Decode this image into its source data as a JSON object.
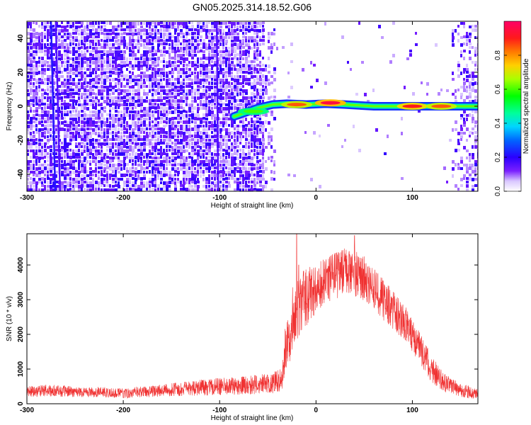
{
  "title": "GN05.2025.314.18.52.G06",
  "chart_data": [
    {
      "type": "heatmap",
      "xlabel": "Height of straight line (km)",
      "ylabel": "Frequency (Hz)",
      "xlim": [
        -300,
        168
      ],
      "ylim": [
        -50,
        50
      ],
      "xticks": [
        -300,
        -200,
        -100,
        0,
        100
      ],
      "yticks": [
        -40,
        -20,
        0,
        20,
        40
      ],
      "colorbar": {
        "label": "Normalized spectral amplitude",
        "range": [
          0.0,
          1.0
        ],
        "ticks": [
          0.0,
          0.2,
          0.4,
          0.6,
          0.8
        ]
      },
      "dense_noise_region_x": [
        -300,
        -55
      ],
      "sparse_region_x": [
        -55,
        140
      ],
      "edge_noise_region_x": [
        140,
        168
      ],
      "signal_trace": [
        {
          "x": -85,
          "f": -6
        },
        {
          "x": -70,
          "f": -3
        },
        {
          "x": -60,
          "f": -1
        },
        {
          "x": -45,
          "f": 1
        },
        {
          "x": -30,
          "f": 1.5
        },
        {
          "x": -10,
          "f": 1
        },
        {
          "x": 10,
          "f": 1.5
        },
        {
          "x": 30,
          "f": 1
        },
        {
          "x": 60,
          "f": 0
        },
        {
          "x": 90,
          "f": 0
        },
        {
          "x": 120,
          "f": 0
        },
        {
          "x": 150,
          "f": 0
        },
        {
          "x": 168,
          "f": 0
        }
      ],
      "signal_peaks": [
        {
          "x": -65,
          "f": -3,
          "a": 0.6
        },
        {
          "x": -20,
          "f": 1,
          "a": 0.85
        },
        {
          "x": 15,
          "f": 2,
          "a": 0.95
        },
        {
          "x": 100,
          "f": 0,
          "a": 0.9
        },
        {
          "x": 130,
          "f": 0,
          "a": 0.85
        }
      ],
      "vertical_streaks_x": [
        -275,
        -270,
        -103
      ]
    },
    {
      "type": "line",
      "xlabel": "Height of straight line (km)",
      "ylabel": "SNR (10 * v/v)",
      "xlim": [
        -300,
        168
      ],
      "ylim": [
        0,
        4900
      ],
      "xticks": [
        -300,
        -200,
        -100,
        0,
        100
      ],
      "yticks": [
        0,
        1000,
        2000,
        3000,
        4000
      ],
      "series": [
        {
          "color": "#f03232",
          "x": [
            -300,
            -280,
            -260,
            -240,
            -220,
            -200,
            -180,
            -160,
            -140,
            -120,
            -100,
            -80,
            -60,
            -45,
            -40,
            -35,
            -32,
            -28,
            -25,
            -20,
            -15,
            -10,
            0,
            10,
            20,
            30,
            35,
            40,
            50,
            60,
            70,
            80,
            90,
            100,
            110,
            120,
            130,
            140,
            150,
            160,
            168
          ],
          "values": [
            350,
            380,
            360,
            340,
            330,
            300,
            340,
            380,
            420,
            460,
            500,
            520,
            560,
            600,
            650,
            700,
            1500,
            2000,
            2400,
            2800,
            3000,
            3100,
            3300,
            3500,
            3700,
            3800,
            3850,
            3800,
            3600,
            3300,
            3000,
            2700,
            2400,
            2000,
            1500,
            1000,
            700,
            500,
            400,
            320,
            280
          ],
          "noise_amplitude": [
            150,
            180,
            160,
            150,
            150,
            140,
            160,
            180,
            200,
            230,
            250,
            260,
            280,
            300,
            320,
            350,
            700,
            900,
            1000,
            1000,
            900,
            850,
            750,
            700,
            700,
            700,
            700,
            700,
            650,
            600,
            600,
            550,
            550,
            500,
            450,
            400,
            300,
            250,
            200,
            180,
            150
          ],
          "spikes": [
            {
              "x": -20,
              "y": 4900
            },
            {
              "x": -18,
              "y": 4000
            },
            {
              "x": 40,
              "y": 4850
            }
          ]
        }
      ]
    }
  ]
}
